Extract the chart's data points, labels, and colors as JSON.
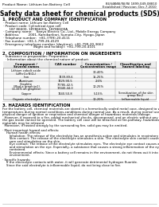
{
  "header_left": "Product Name: Lithium Ion Battery Cell",
  "header_right_line1": "BUS/ANSI/ISI/ISI 1899-049-08810",
  "header_right_line2": "Established / Revision: Dec.7.2010",
  "title": "Safety data sheet for chemical products (SDS)",
  "section1_title": "1. PRODUCT AND COMPANY IDENTIFICATION",
  "section1_lines": [
    "· Product name: Lithium Ion Battery Cell",
    "· Product code: Cylindrical-type cell",
    "      18Y 86600, 18Y86600L, 18Y86600A",
    "· Company name:    Sanyo Electric Co., Ltd., Mobile Energy Company",
    "· Address:         2001, Kamikarikari, Sumoto-City, Hyogo, Japan",
    "· Telephone number:  +81-(799)-20-4111",
    "· Fax number: +81-1-799-26-4129",
    "· Emergency telephone number (daytime): +81-799-20-3662",
    "                              (Night and holiday): +81-799-20-4101"
  ],
  "section2_title": "2. COMPOSITION / INFORMATION ON INGREDIENTS",
  "section2_intro": "· Substance or preparation: Preparation",
  "section2_sub": "  · Information about the chemical nature of product:",
  "table_col_labels_row1": [
    "Component / Several names",
    "CAS number",
    "Concentration / Concentration range",
    "Classification and hazard labeling"
  ],
  "table_rows": [
    [
      "Lithium cobalt oxide\n(LiMn·Co·NiO₂)",
      "-",
      "30-40%",
      "-"
    ],
    [
      "Iron",
      "7439-89-6",
      "15-25%",
      "-"
    ],
    [
      "Aluminum",
      "7429-90-5",
      "2-6%",
      "-"
    ],
    [
      "Graphite\n(Mod-a graphite1)\n(4-16% on graphite)",
      "77785-42-5\n17440-44-0",
      "10-25%",
      "-"
    ],
    [
      "Copper",
      "7440-50-8",
      "5-15%",
      "Sensitization of the skin\ngroup No.2"
    ],
    [
      "Organic electrolyte",
      "-",
      "10-20%",
      "Inflammable liquid"
    ]
  ],
  "section3_title": "3. HAZARDS IDENTIFICATION",
  "section3_body": [
    "For the battery cell, chemical materials are stored in a hermetically sealed metal case, designed to withstand",
    "temperatures during normal conditions-conditions during normal use. As a result, during normal use, there is no",
    "physical danger of ignition or respiration and chemical danger of hazardous materials leakage.",
    "  However, if exposed to a fire, added mechanical shocks, decomposed, and an electric without any measures,",
    "the gas inside cannot be operated. The battery cell case will be breached at fire-pathway, hazardous",
    "materials may be released.",
    "  Moreover, if heated strongly by the surrounding fire, solid gas may be emitted.",
    "",
    "· Most important hazard and effects:",
    "    Human health effects:",
    "       Inhalation: The release of the electrolyte has an anesthesia action and stimulates in respiratory tract.",
    "       Skin contact: The release of the electrolyte stimulates a skin. The electrolyte skin contact causes a",
    "       sore and stimulation on the skin.",
    "       Eye contact: The release of the electrolyte stimulates eyes. The electrolyte eye contact causes a sore",
    "       and stimulation on the eye. Especially, a substance that causes a strong inflammation of the eyes is",
    "       contained.",
    "       Environmental effects: Since a battery cell remains in the environment, do not throw out it into the",
    "       environment.",
    "",
    "· Specific hazards:",
    "    If the electrolyte contacts with water, it will generate detrimental hydrogen fluoride.",
    "    Since the said electrolyte is inflammable liquid, do not bring close to fire."
  ],
  "bg_color": "#ffffff",
  "line_color": "#999999",
  "table_border_color": "#888888"
}
